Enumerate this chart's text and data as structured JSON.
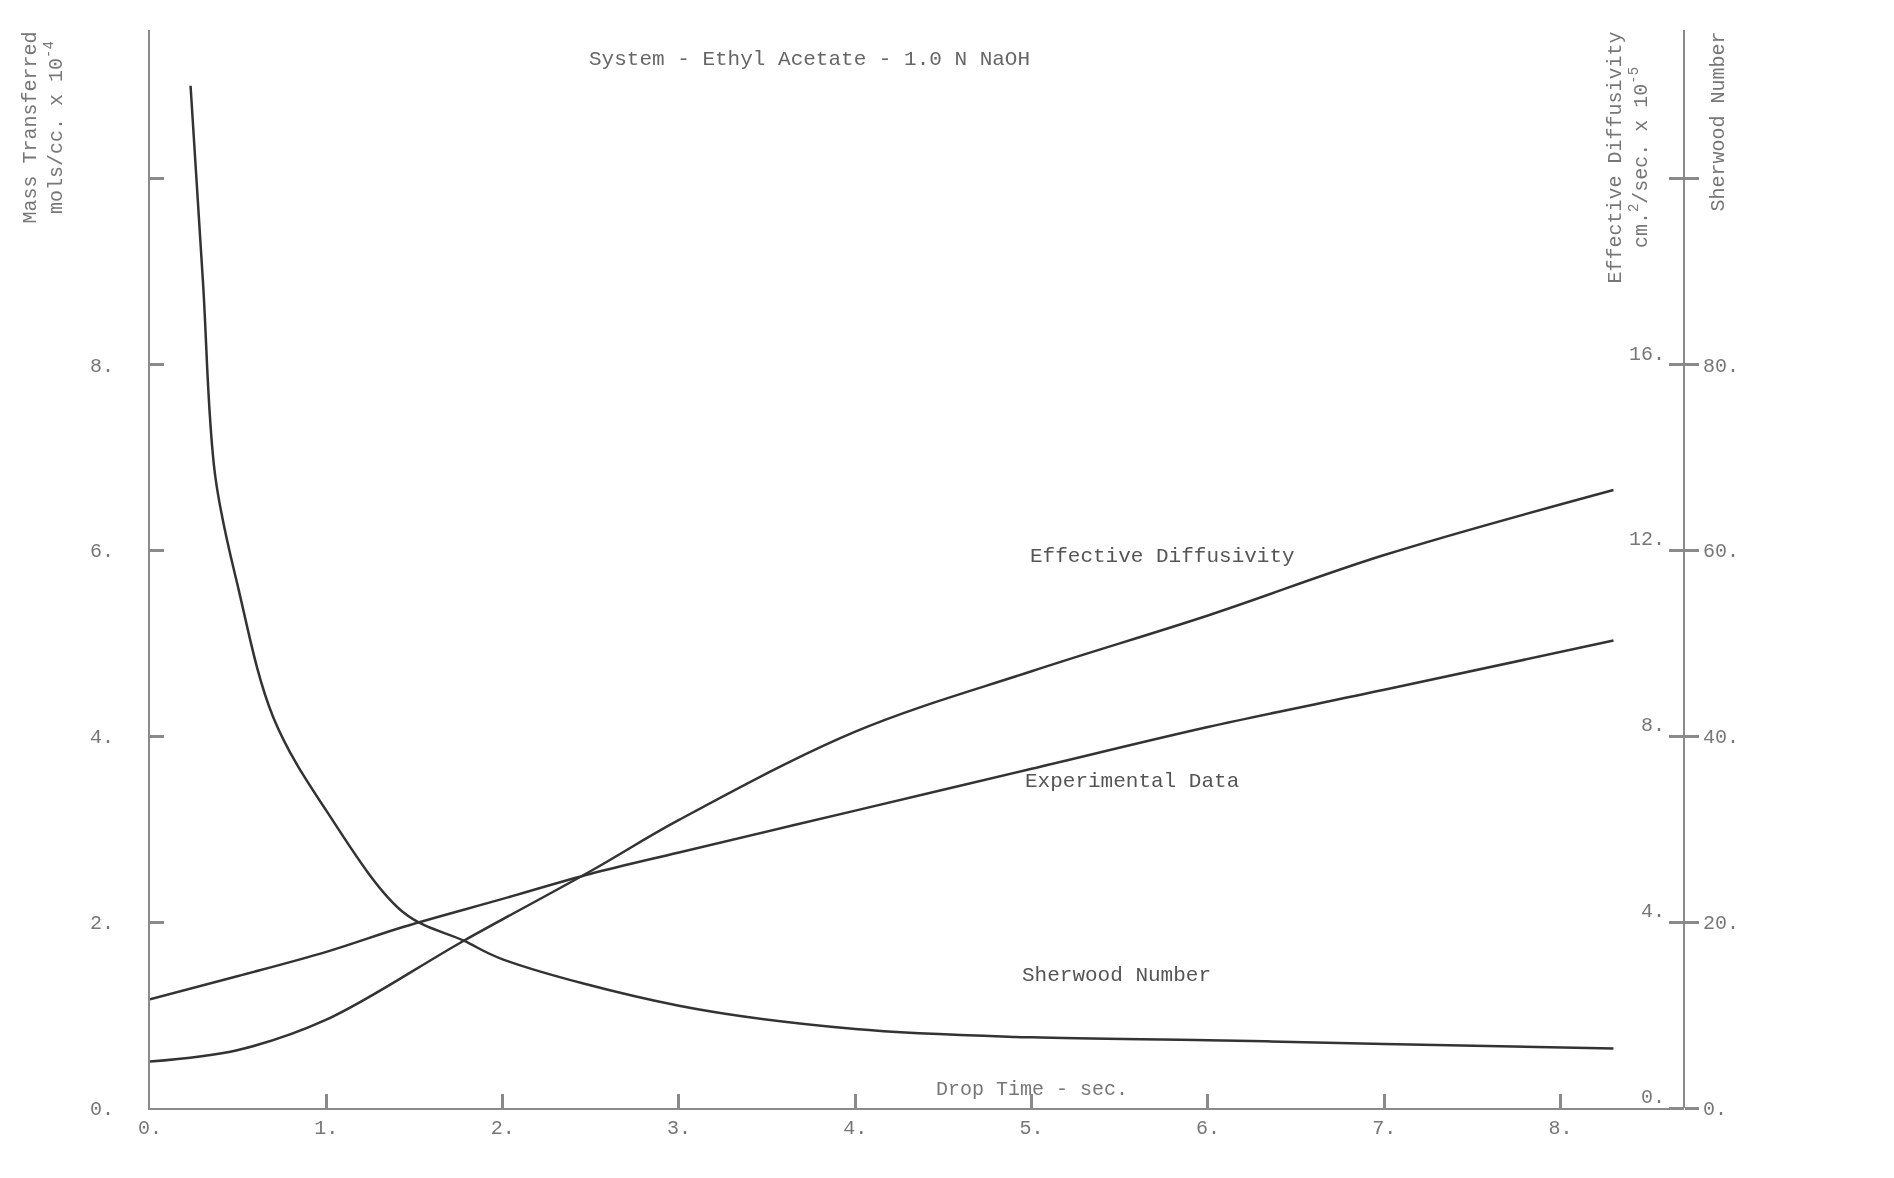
{
  "chart_data": {
    "type": "line",
    "title": "System - Ethyl Acetate - 1.0 N NaOH",
    "xlabel": "Drop Time - sec.",
    "ylabel": "Mass Transferred\nmols/cc. x 10$^{-4}$",
    "y2label": "Effective Diffusivity\ncm.$^{2}$/sec. x 10$^{-5}$",
    "y3label": "Sherwood Number",
    "xlim": [
      0,
      8.7
    ],
    "xticks": [
      {
        "value": 0,
        "label": "0."
      },
      {
        "value": 1,
        "label": "1."
      },
      {
        "value": 2,
        "label": "2."
      },
      {
        "value": 3,
        "label": "3."
      },
      {
        "value": 4,
        "label": "4."
      },
      {
        "value": 5,
        "label": "5."
      },
      {
        "value": 6,
        "label": "6."
      },
      {
        "value": 7,
        "label": "7."
      },
      {
        "value": 8,
        "label": "8."
      }
    ],
    "ylim": [
      0,
      11.6
    ],
    "yticks": [
      {
        "value": 0,
        "label": "0."
      },
      {
        "value": 2,
        "label": "2."
      },
      {
        "value": 4,
        "label": "4."
      },
      {
        "value": 6,
        "label": "6."
      },
      {
        "value": 8,
        "label": "8."
      },
      {
        "value": 10,
        "label": null
      }
    ],
    "y2lim": [
      0,
      23.2
    ],
    "y2ticks": [
      {
        "value": 0,
        "label": "0."
      },
      {
        "value": 4,
        "label": "4."
      },
      {
        "value": 8,
        "label": "8."
      },
      {
        "value": 12,
        "label": "12."
      },
      {
        "value": 16,
        "label": "16."
      },
      {
        "value": 20,
        "label": null
      }
    ],
    "y3lim": [
      0,
      116
    ],
    "y3ticks": [
      {
        "value": 0,
        "label": "0."
      },
      {
        "value": 20,
        "label": "20."
      },
      {
        "value": 40,
        "label": "40."
      },
      {
        "value": 60,
        "label": "60."
      },
      {
        "value": 80,
        "label": "80."
      },
      {
        "value": 100,
        "label": null
      }
    ],
    "legend": false,
    "marker": "none",
    "line_style": "solid",
    "series": [
      {
        "axis": "y",
        "color": "#333333",
        "x": [
          0,
          0.5,
          1,
          1.44,
          2,
          2.5,
          3,
          4,
          5,
          6,
          7,
          8.3
        ],
        "values": [
          1.17,
          1.42,
          1.68,
          1.95,
          2.25,
          2.52,
          2.75,
          3.2,
          3.65,
          4.1,
          4.5,
          5.03
        ]
      },
      {
        "axis": "y2",
        "color": "#333333",
        "x": [
          0,
          0.5,
          1,
          1.78,
          2.5,
          3,
          4,
          5,
          6,
          7,
          8.3
        ],
        "values": [
          1.0,
          1.25,
          1.9,
          3.6,
          5.1,
          6.2,
          8.1,
          9.4,
          10.6,
          11.9,
          13.3
        ]
      },
      {
        "axis": "y3",
        "color": "#333333",
        "x": [
          0.23,
          0.3,
          0.37,
          0.5,
          0.7,
          1,
          1.44,
          1.78,
          2,
          3,
          4,
          5,
          6,
          7,
          8.3
        ],
        "values": [
          110,
          89,
          68,
          56,
          42,
          32,
          21,
          18,
          16,
          11,
          8.5,
          7.6,
          7.3,
          6.9,
          6.4
        ]
      }
    ],
    "annotations": [
      "Effective Diffusivity",
      "Experimental Data",
      "Sherwood Number"
    ]
  }
}
